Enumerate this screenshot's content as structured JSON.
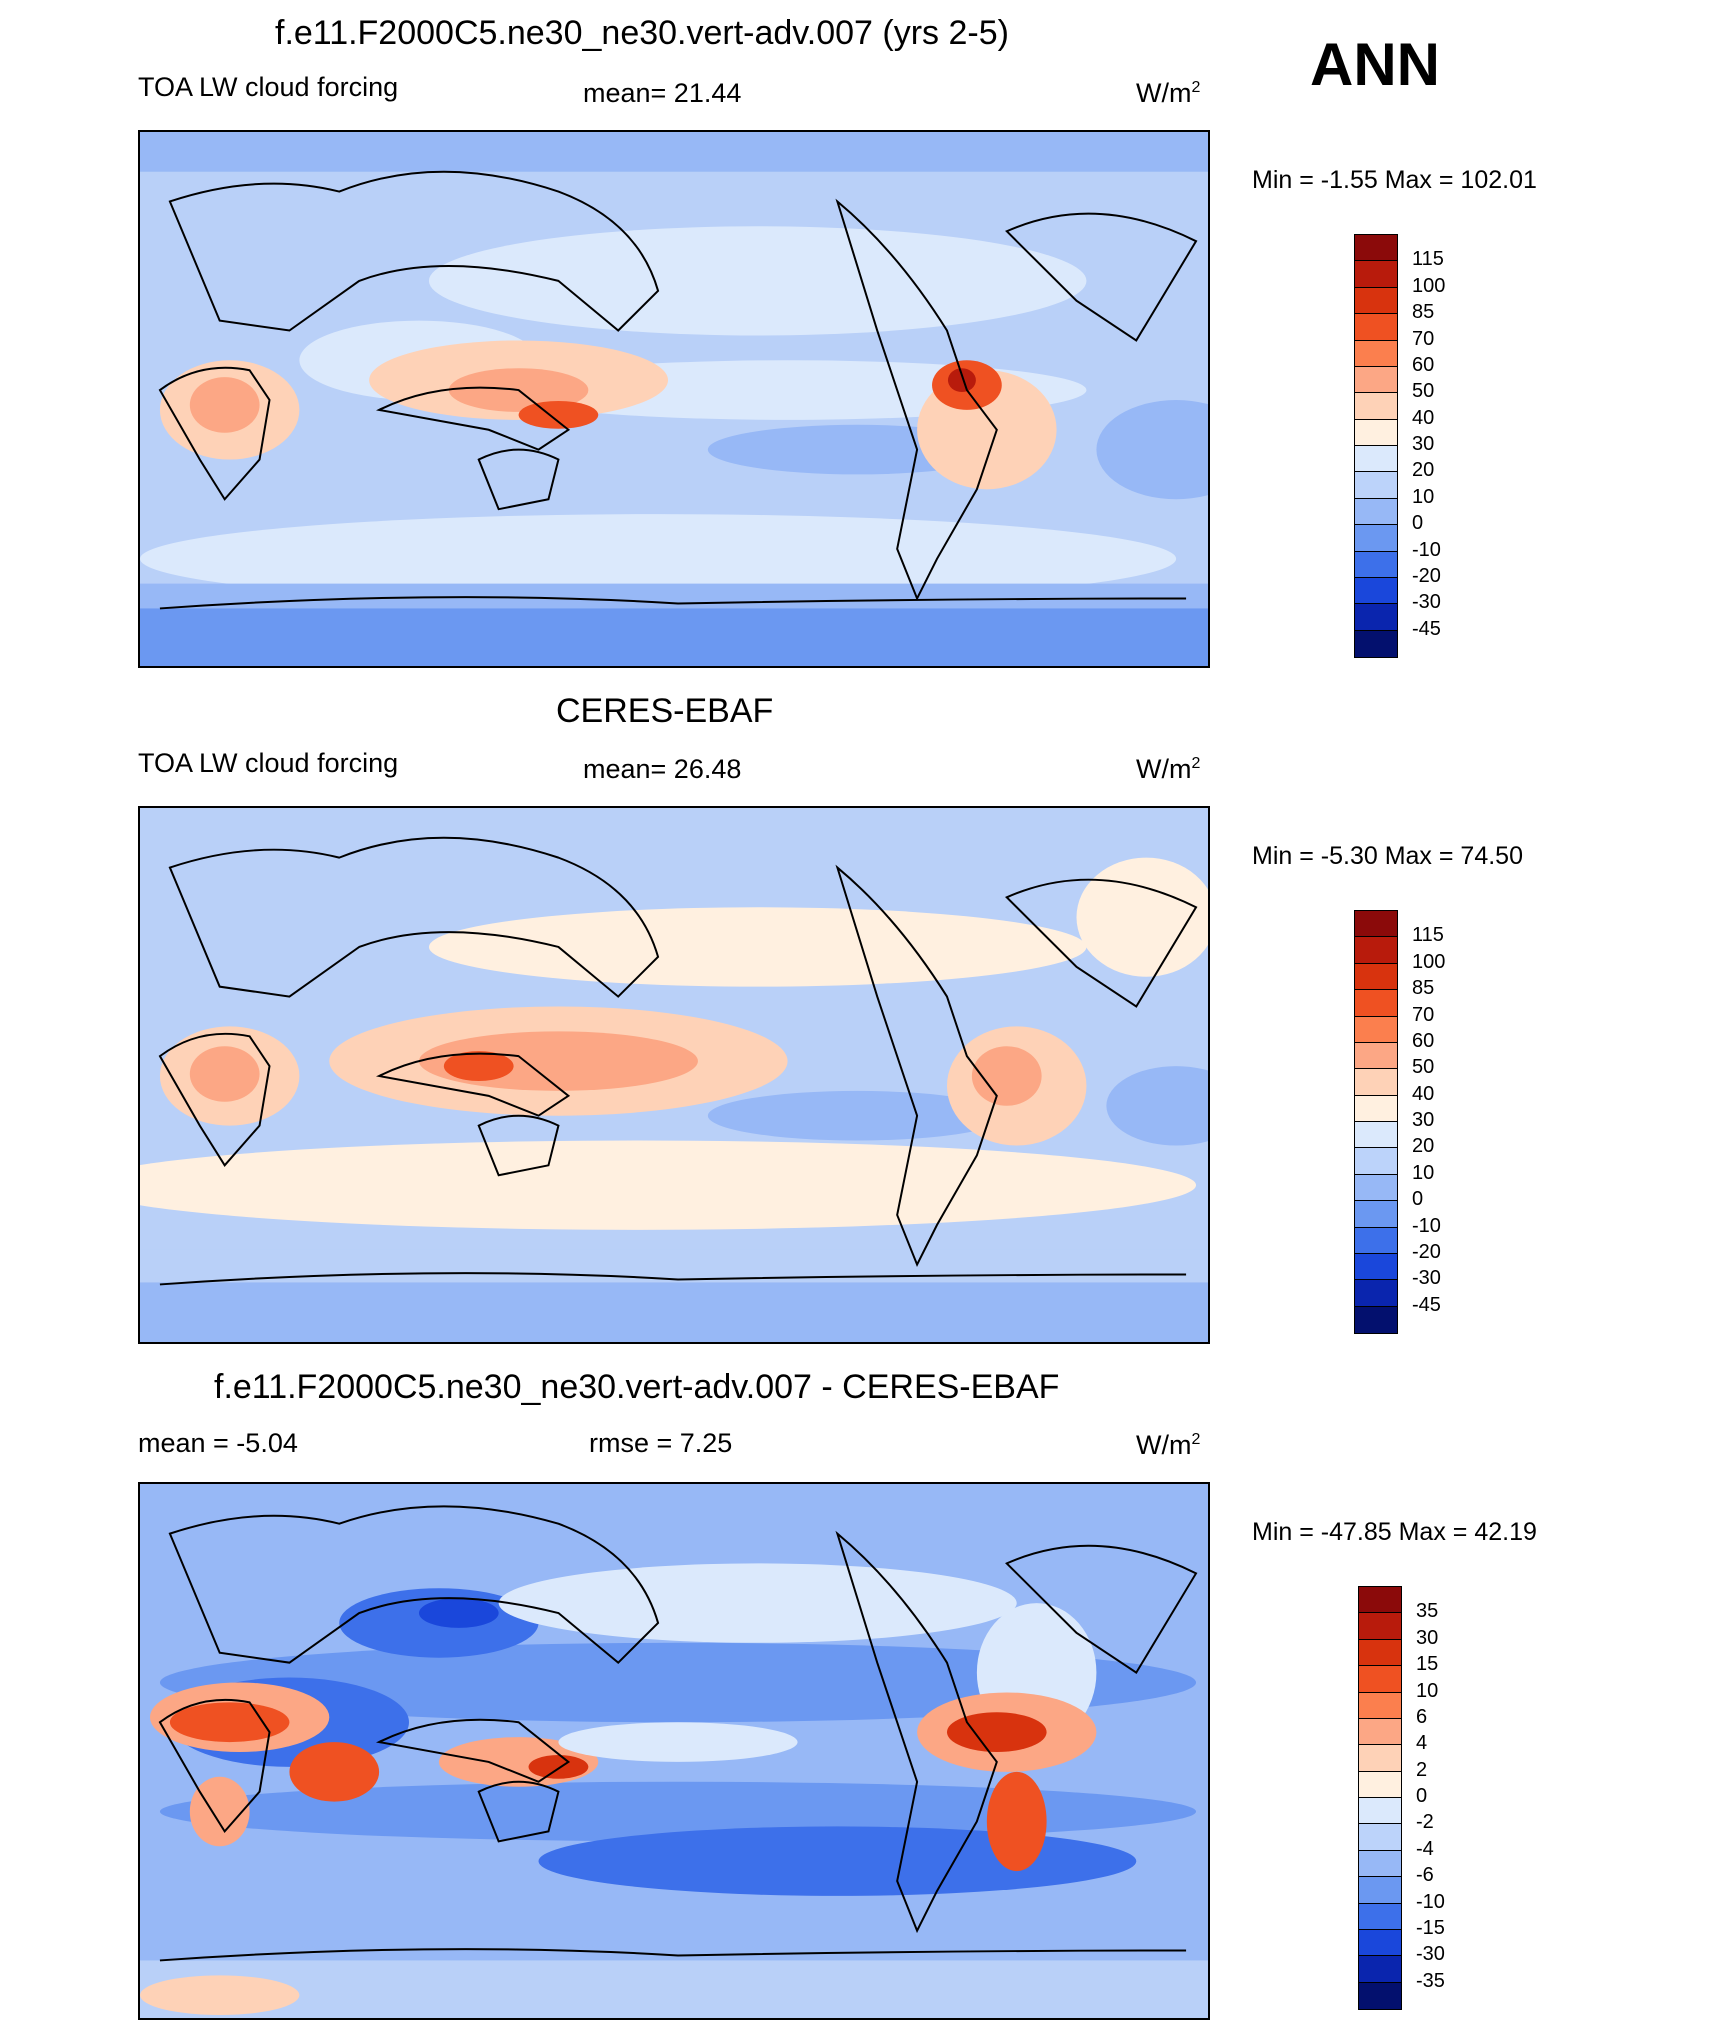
{
  "header": {
    "season": "ANN"
  },
  "units_base": "W/m",
  "units_exp": "2",
  "panels": [
    {
      "title": "f.e11.F2000C5.ne30_ne30.vert-adv.007 (yrs 2-5)",
      "left_label": "TOA LW cloud forcing",
      "center_label": "mean=  21.44",
      "minmax": "Min =  -1.55 Max = 102.01",
      "colorbar": {
        "ticks": [
          "115",
          "100",
          "85",
          "70",
          "60",
          "50",
          "40",
          "30",
          "20",
          "10",
          "0",
          "-10",
          "-20",
          "-30",
          "-45"
        ],
        "colors": [
          "#8b0a0a",
          "#b81b0c",
          "#d8330e",
          "#ef5122",
          "#fb7f4e",
          "#fca785",
          "#fed2b7",
          "#fff0e0",
          "#dbe9fc",
          "#bcd3fa",
          "#97b8f6",
          "#6b98f1",
          "#3d70ea",
          "#1a47db",
          "#0a25ae",
          "#03106e"
        ]
      }
    },
    {
      "title": "CERES-EBAF",
      "left_label": "TOA LW cloud forcing",
      "center_label": "mean=  26.48",
      "minmax": "Min =  -5.30 Max =  74.50",
      "colorbar": {
        "ticks": [
          "115",
          "100",
          "85",
          "70",
          "60",
          "50",
          "40",
          "30",
          "20",
          "10",
          "0",
          "-10",
          "-20",
          "-30",
          "-45"
        ],
        "colors": [
          "#8b0a0a",
          "#b81b0c",
          "#d8330e",
          "#ef5122",
          "#fb7f4e",
          "#fca785",
          "#fed2b7",
          "#fff0e0",
          "#dbe9fc",
          "#bcd3fa",
          "#97b8f6",
          "#6b98f1",
          "#3d70ea",
          "#1a47db",
          "#0a25ae",
          "#03106e"
        ]
      }
    },
    {
      "title": "f.e11.F2000C5.ne30_ne30.vert-adv.007 - CERES-EBAF",
      "left_label": "mean =  -5.04",
      "center_label": "rmse =   7.25",
      "minmax": "Min = -47.85 Max =  42.19",
      "colorbar": {
        "ticks": [
          "35",
          "30",
          "15",
          "10",
          "6",
          "4",
          "2",
          "0",
          "-2",
          "-4",
          "-6",
          "-10",
          "-15",
          "-30",
          "-35"
        ],
        "colors": [
          "#8b0a0a",
          "#b81b0c",
          "#d8330e",
          "#ef5122",
          "#fb7f4e",
          "#fca785",
          "#fed2b7",
          "#fff0e0",
          "#dbe9fc",
          "#bcd3fa",
          "#97b8f6",
          "#6b98f1",
          "#3d70ea",
          "#1a47db",
          "#0a25ae",
          "#03106e"
        ]
      }
    }
  ]
}
